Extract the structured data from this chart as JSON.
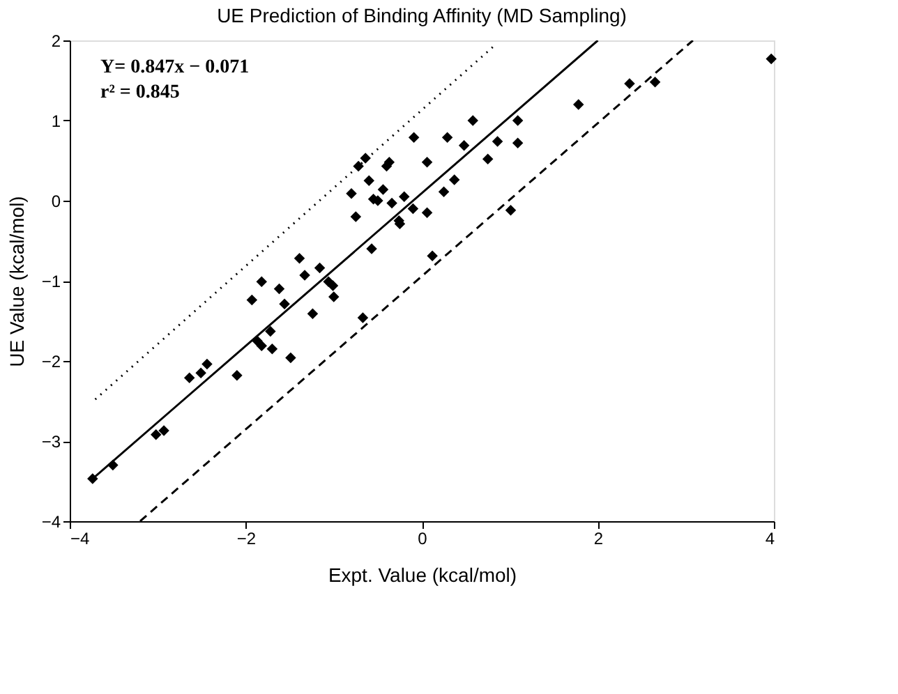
{
  "chart_data": {
    "type": "scatter",
    "title": "UE Prediction of Binding Affinity (MD Sampling)",
    "xlabel": "Expt. Value (kcal/mol)",
    "ylabel": "UE Value (kcal/mol)",
    "annotations": [
      "Y= 0.847x − 0.071",
      "r² = 0.845"
    ],
    "xlim": [
      -4,
      4
    ],
    "ylim": [
      -4,
      2
    ],
    "xticks": [
      -4,
      -2,
      0,
      2,
      4
    ],
    "yticks": [
      -4,
      -3,
      -2,
      -1,
      0,
      1,
      2
    ],
    "grid": false,
    "series": [
      {
        "marker": "diamond",
        "color": "#000000",
        "x": [
          -3.74,
          -3.51,
          -3.02,
          -2.93,
          -2.64,
          -2.44,
          -2.51,
          -2.1,
          -1.49,
          -1.87,
          -1.82,
          -1.72,
          -1.93,
          -1.82,
          -1.62,
          -1.56,
          -1.39,
          -1.33,
          -1.24,
          -1.06,
          -1.16,
          -1.01,
          -0.72,
          -0.64,
          -0.37,
          -0.8,
          -0.75,
          -0.55,
          -0.44,
          -0.34,
          -0.26,
          -0.4,
          -0.57,
          -0.25,
          0.06,
          -0.09,
          0.29,
          0.48,
          0.58,
          0.06,
          0.25,
          0.37,
          0.75,
          0.86,
          1.09,
          1.09,
          1.01,
          0.12,
          -0.67,
          1.78,
          2.36,
          2.65,
          3.97,
          -0.5,
          -0.2,
          -0.6,
          -0.1,
          -1.7,
          -1.0
        ],
        "values": [
          -3.47,
          -3.3,
          -2.92,
          -2.87,
          -2.21,
          -2.04,
          -2.15,
          -2.18,
          -1.96,
          -1.75,
          -1.81,
          -1.63,
          -1.24,
          -1.01,
          -1.1,
          -1.29,
          -0.72,
          -0.93,
          -1.41,
          -1.01,
          -0.84,
          -1.06,
          0.43,
          0.53,
          0.48,
          0.09,
          -0.2,
          0.02,
          0.14,
          -0.03,
          -0.25,
          0.43,
          -0.6,
          -0.29,
          0.48,
          0.79,
          0.79,
          0.69,
          1.0,
          -0.15,
          0.11,
          0.26,
          0.52,
          0.74,
          1.0,
          0.72,
          -0.12,
          -0.69,
          -1.46,
          1.2,
          1.46,
          1.48,
          1.77,
          0.0,
          0.05,
          0.25,
          -0.1,
          -1.85,
          -1.2
        ]
      },
      {
        "type": "line",
        "line_style": "solid",
        "marker": "none",
        "color": "#000000",
        "x": [
          -3.74,
          2.0
        ],
        "values": [
          -3.47,
          2.0
        ]
      },
      {
        "type": "line",
        "line_style": "dotted",
        "marker": "none",
        "color": "#000000",
        "x": [
          -3.71,
          0.83
        ],
        "values": [
          -2.48,
          1.94
        ]
      },
      {
        "type": "line",
        "line_style": "dashed",
        "marker": "none",
        "color": "#000000",
        "x": [
          -3.2,
          3.08
        ],
        "values": [
          -4.0,
          2.0
        ]
      }
    ]
  }
}
